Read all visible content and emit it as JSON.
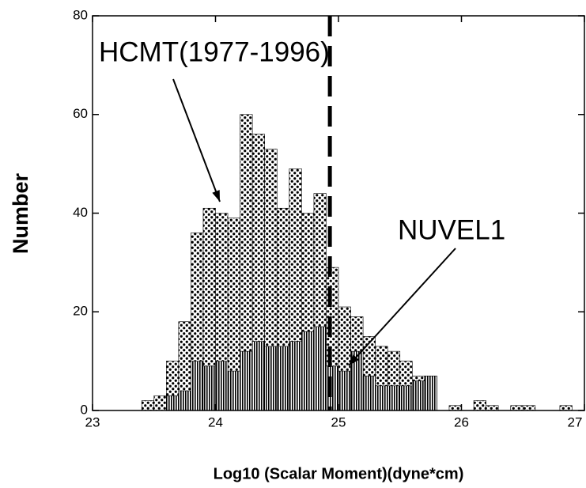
{
  "chart_data": {
    "type": "histogram",
    "xlabel": "Log10 (Scalar Moment)(dyne*cm)",
    "ylabel": "Number",
    "bins": [
      23.4,
      23.5,
      23.6,
      23.7,
      23.8,
      23.9,
      24.0,
      24.1,
      24.2,
      24.3,
      24.4,
      24.5,
      24.6,
      24.7,
      24.8,
      24.9,
      25.0,
      25.1,
      25.2,
      25.3,
      25.4,
      25.5,
      25.6,
      25.7,
      25.8,
      25.9,
      26.0,
      26.1,
      26.2,
      26.3,
      26.4,
      26.5,
      26.6,
      26.7,
      26.8,
      26.9,
      27.0
    ],
    "series": [
      {
        "name": "HCMT(1977-1996)",
        "color": "#000000",
        "pattern": "dots",
        "values": [
          2,
          3,
          10,
          18,
          36,
          41,
          40,
          39,
          60,
          56,
          53,
          41,
          49,
          40,
          44,
          29,
          21,
          19,
          15,
          13,
          12,
          10,
          7,
          7,
          0,
          1,
          0,
          2,
          1,
          0,
          1,
          1,
          0,
          0,
          1,
          0
        ]
      },
      {
        "name": "NUVEL1",
        "color": "#000000",
        "pattern": "stripes",
        "values": [
          0,
          0,
          3,
          4,
          10,
          9,
          10,
          8,
          12,
          14,
          13,
          13,
          14,
          16,
          17,
          9,
          8,
          12,
          7,
          5,
          5,
          5,
          6,
          7,
          0,
          0,
          0,
          0,
          0,
          0,
          0,
          0,
          0,
          0,
          0,
          0
        ]
      }
    ],
    "reference_line": 24.93,
    "xlim": [
      23,
      27
    ],
    "xticks": [
      23,
      24,
      25,
      26,
      27
    ],
    "ylim": [
      0,
      80
    ],
    "yticks": [
      0,
      20,
      40,
      60,
      80
    ]
  }
}
